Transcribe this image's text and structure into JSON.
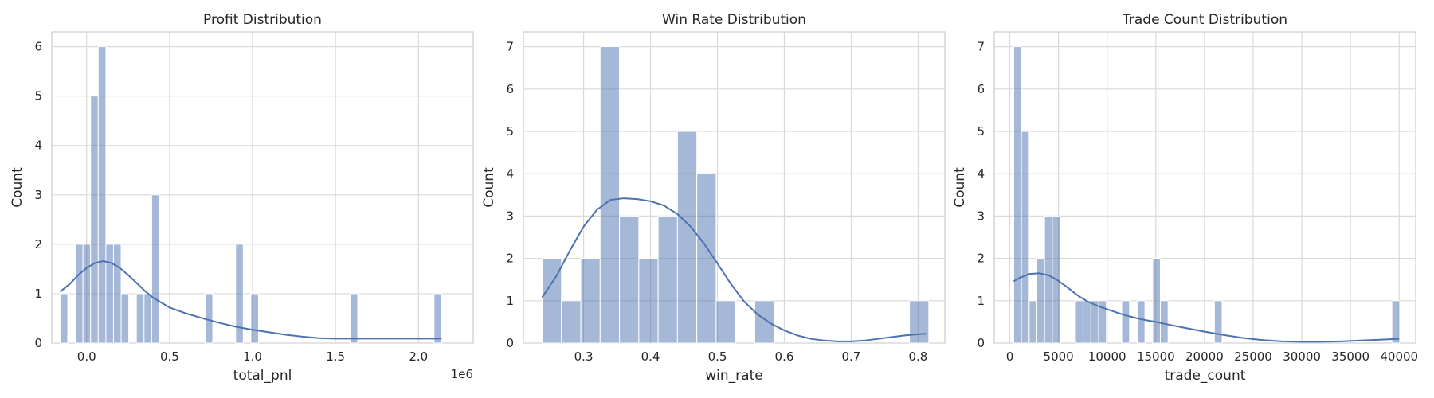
{
  "chart_data": [
    {
      "type": "bar",
      "subtype": "histogram_with_kde",
      "title": "Profit Distribution",
      "xlabel": "total_pnl",
      "ylabel": "Count",
      "x_offset_text": "1e6",
      "xlim": [
        -0.21,
        2.33
      ],
      "ylim": [
        0,
        6.3
      ],
      "xticks": [
        0.0,
        0.5,
        1.0,
        1.5,
        2.0
      ],
      "xtick_labels": [
        "0.0",
        "0.5",
        "1.0",
        "1.5",
        "2.0"
      ],
      "yticks": [
        0,
        1,
        2,
        3,
        4,
        5,
        6
      ],
      "ytick_labels": [
        "0",
        "1",
        "2",
        "3",
        "4",
        "5",
        "6"
      ],
      "grid": true,
      "bins": {
        "start": -0.16,
        "width": 0.046,
        "counts": [
          1,
          0,
          2,
          2,
          5,
          6,
          2,
          2,
          1,
          0,
          1,
          1,
          3,
          0,
          0,
          0,
          0,
          0,
          0,
          1,
          0,
          0,
          0,
          2,
          0,
          1,
          0,
          0,
          0,
          0,
          0,
          0,
          0,
          0,
          0,
          0,
          0,
          0,
          1,
          0,
          0,
          0,
          0,
          0,
          0,
          0,
          0,
          0,
          0,
          1
        ]
      },
      "kde": {
        "x": [
          -0.16,
          -0.1,
          -0.05,
          0.0,
          0.05,
          0.1,
          0.15,
          0.2,
          0.25,
          0.3,
          0.35,
          0.4,
          0.5,
          0.6,
          0.7,
          0.8,
          0.9,
          1.0,
          1.1,
          1.2,
          1.3,
          1.4,
          1.5,
          1.6,
          1.7,
          1.8,
          1.9,
          2.0,
          2.1,
          2.14
        ],
        "y": [
          1.04,
          1.2,
          1.38,
          1.52,
          1.62,
          1.66,
          1.62,
          1.52,
          1.38,
          1.22,
          1.06,
          0.92,
          0.72,
          0.6,
          0.5,
          0.41,
          0.33,
          0.27,
          0.22,
          0.17,
          0.13,
          0.1,
          0.09,
          0.09,
          0.09,
          0.09,
          0.09,
          0.09,
          0.09,
          0.09
        ]
      }
    },
    {
      "type": "bar",
      "subtype": "histogram_with_kde",
      "title": "Win Rate Distribution",
      "xlabel": "win_rate",
      "ylabel": "Count",
      "x_offset_text": "",
      "xlim": [
        0.21,
        0.84
      ],
      "ylim": [
        0,
        7.35
      ],
      "xticks": [
        0.3,
        0.4,
        0.5,
        0.6,
        0.7,
        0.8
      ],
      "xtick_labels": [
        "0.3",
        "0.4",
        "0.5",
        "0.6",
        "0.7",
        "0.8"
      ],
      "yticks": [
        0,
        1,
        2,
        3,
        4,
        5,
        6,
        7
      ],
      "ytick_labels": [
        "0",
        "1",
        "2",
        "3",
        "4",
        "5",
        "6",
        "7"
      ],
      "grid": true,
      "bins": {
        "start": 0.238,
        "width": 0.0289,
        "counts": [
          2,
          1,
          2,
          7,
          3,
          2,
          3,
          5,
          4,
          1,
          0,
          1,
          0,
          0,
          0,
          0,
          0,
          0,
          0,
          1
        ]
      },
      "kde": {
        "x": [
          0.238,
          0.26,
          0.28,
          0.3,
          0.32,
          0.34,
          0.36,
          0.38,
          0.4,
          0.42,
          0.44,
          0.46,
          0.48,
          0.5,
          0.52,
          0.54,
          0.56,
          0.58,
          0.6,
          0.62,
          0.64,
          0.66,
          0.68,
          0.7,
          0.72,
          0.74,
          0.76,
          0.78,
          0.8,
          0.812
        ],
        "y": [
          1.08,
          1.6,
          2.2,
          2.75,
          3.15,
          3.38,
          3.42,
          3.4,
          3.35,
          3.25,
          3.05,
          2.75,
          2.35,
          1.88,
          1.4,
          0.98,
          0.68,
          0.46,
          0.3,
          0.18,
          0.1,
          0.06,
          0.04,
          0.04,
          0.06,
          0.1,
          0.14,
          0.18,
          0.21,
          0.22
        ]
      }
    },
    {
      "type": "bar",
      "subtype": "histogram_with_kde",
      "title": "Trade Count Distribution",
      "xlabel": "trade_count",
      "ylabel": "Count",
      "x_offset_text": "",
      "xlim": [
        -1600,
        41700
      ],
      "ylim": [
        0,
        7.35
      ],
      "xticks": [
        0,
        5000,
        10000,
        15000,
        20000,
        25000,
        30000,
        35000,
        40000
      ],
      "xtick_labels": [
        "0",
        "5000",
        "10000",
        "15000",
        "20000",
        "25000",
        "30000",
        "35000",
        "40000"
      ],
      "yticks": [
        0,
        1,
        2,
        3,
        4,
        5,
        6,
        7
      ],
      "ytick_labels": [
        "0",
        "1",
        "2",
        "3",
        "4",
        "5",
        "6",
        "7"
      ],
      "grid": true,
      "bins": {
        "start": 400,
        "width": 793,
        "counts": [
          7,
          5,
          1,
          2,
          3,
          3,
          0,
          0,
          1,
          1,
          1,
          1,
          0,
          0,
          1,
          0,
          1,
          0,
          2,
          1,
          0,
          0,
          0,
          0,
          0,
          0,
          1,
          0,
          0,
          0,
          0,
          0,
          0,
          0,
          0,
          0,
          0,
          0,
          0,
          0,
          0,
          0,
          0,
          0,
          0,
          0,
          0,
          0,
          0,
          1
        ]
      },
      "kde": {
        "x": [
          400,
          1000,
          2000,
          3000,
          4000,
          5000,
          6000,
          7000,
          8000,
          9000,
          10000,
          11000,
          12000,
          13000,
          14000,
          15000,
          16000,
          18000,
          20000,
          22000,
          24000,
          26000,
          28000,
          30000,
          32000,
          34000,
          36000,
          38000,
          40000
        ],
        "y": [
          1.46,
          1.54,
          1.63,
          1.65,
          1.6,
          1.47,
          1.3,
          1.12,
          0.98,
          0.88,
          0.8,
          0.72,
          0.65,
          0.59,
          0.54,
          0.5,
          0.45,
          0.36,
          0.27,
          0.19,
          0.12,
          0.07,
          0.04,
          0.03,
          0.03,
          0.04,
          0.06,
          0.08,
          0.1
        ]
      }
    }
  ]
}
